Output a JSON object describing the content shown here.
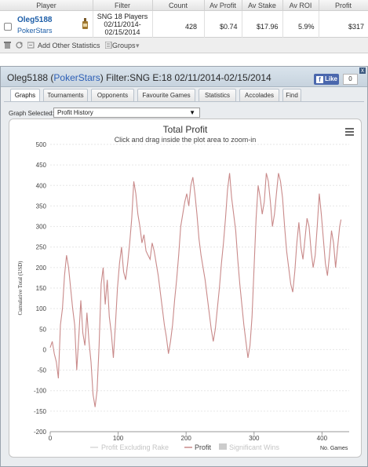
{
  "stats_table": {
    "headers": [
      "Player",
      "Filter",
      "Count",
      "Av Profit",
      "Av Stake",
      "Av ROI",
      "Profit"
    ],
    "row": {
      "player": "Oleg5188",
      "site": "PokerStars",
      "filter": "SNG 18 Players 02/11/2014-02/15/2014",
      "count": "428",
      "av_profit": "$0.74",
      "av_stake": "$17.96",
      "av_roi": "5.9%",
      "profit": "$317"
    }
  },
  "toolbar": {
    "add_stats": "Add Other Statistics",
    "groups": "Groups"
  },
  "window": {
    "title_player": "Oleg5188",
    "title_site_open": " (",
    "title_site": "PokerStars",
    "title_site_close": ")",
    "title_filter": " Filter:SNG E:18 02/11/2014-02/15/2014",
    "fb_like": "Like",
    "fb_count": "0",
    "close": "x",
    "tabs": [
      "Graphs",
      "Tournaments",
      "Opponents",
      "Favourite Games",
      "Statistics",
      "Accolades",
      "Find"
    ],
    "graph_selected_label": "Graph Selected:",
    "graph_selected_value": "Profit History"
  },
  "colors": {
    "profit_line": "#c98a8a",
    "excl_rake_line": "#d8d8d8",
    "site_link": "#2f61b7"
  },
  "chart_data": {
    "type": "line",
    "title": "Total Profit",
    "subtitle": "Click and drag inside the plot area to zoom-in",
    "ylabel": "Cumulative Total (USD)",
    "xlabel": "No. Games",
    "ylim": [
      -200,
      500
    ],
    "xlim": [
      0,
      440
    ],
    "y_ticks": [
      -200,
      -150,
      -100,
      -50,
      0,
      50,
      100,
      150,
      200,
      250,
      300,
      350,
      400,
      450,
      500
    ],
    "x_ticks": [
      0,
      100,
      200,
      300,
      400
    ],
    "grid": true,
    "legend": [
      "Profit Excluding Rake",
      "Profit",
      "Significant Wins"
    ],
    "series": [
      {
        "name": "Profit",
        "x": [
          0,
          3,
          6,
          9,
          12,
          15,
          18,
          21,
          24,
          27,
          30,
          33,
          36,
          39,
          42,
          45,
          48,
          51,
          54,
          57,
          60,
          63,
          66,
          69,
          72,
          75,
          78,
          81,
          84,
          87,
          90,
          93,
          96,
          99,
          102,
          105,
          108,
          111,
          114,
          117,
          120,
          123,
          126,
          129,
          132,
          135,
          138,
          141,
          144,
          147,
          150,
          153,
          156,
          159,
          162,
          165,
          168,
          171,
          174,
          177,
          180,
          183,
          186,
          189,
          192,
          195,
          198,
          201,
          204,
          207,
          210,
          213,
          216,
          219,
          222,
          225,
          228,
          231,
          234,
          237,
          240,
          243,
          246,
          249,
          252,
          255,
          258,
          261,
          264,
          267,
          270,
          273,
          276,
          279,
          282,
          285,
          288,
          291,
          294,
          297,
          300,
          303,
          306,
          309,
          312,
          315,
          318,
          321,
          324,
          327,
          330,
          333,
          336,
          339,
          342,
          345,
          348,
          351,
          354,
          357,
          360,
          363,
          366,
          369,
          372,
          375,
          378,
          381,
          384,
          387,
          390,
          393,
          396,
          399,
          402,
          405,
          408,
          411,
          414,
          417,
          420,
          423,
          426,
          428
        ],
        "y": [
          5,
          20,
          -10,
          -30,
          -70,
          60,
          100,
          180,
          230,
          200,
          150,
          100,
          60,
          -50,
          30,
          120,
          40,
          10,
          90,
          20,
          -30,
          -110,
          -140,
          -100,
          10,
          160,
          200,
          110,
          170,
          80,
          40,
          -20,
          60,
          150,
          210,
          250,
          190,
          170,
          210,
          260,
          320,
          410,
          380,
          330,
          300,
          260,
          280,
          240,
          230,
          220,
          260,
          240,
          210,
          180,
          140,
          100,
          60,
          30,
          -10,
          20,
          60,
          120,
          170,
          230,
          300,
          330,
          360,
          380,
          350,
          400,
          420,
          380,
          330,
          270,
          230,
          200,
          170,
          130,
          90,
          50,
          20,
          50,
          100,
          150,
          210,
          260,
          320,
          390,
          430,
          370,
          330,
          290,
          220,
          160,
          110,
          60,
          20,
          -20,
          10,
          80,
          200,
          320,
          400,
          370,
          330,
          360,
          430,
          410,
          360,
          300,
          330,
          380,
          430,
          410,
          370,
          300,
          240,
          200,
          160,
          140,
          190,
          260,
          310,
          250,
          220,
          270,
          320,
          300,
          240,
          200,
          230,
          300,
          380,
          330,
          270,
          210,
          180,
          230,
          290,
          260,
          200,
          250,
          300,
          317
        ]
      }
    ]
  }
}
